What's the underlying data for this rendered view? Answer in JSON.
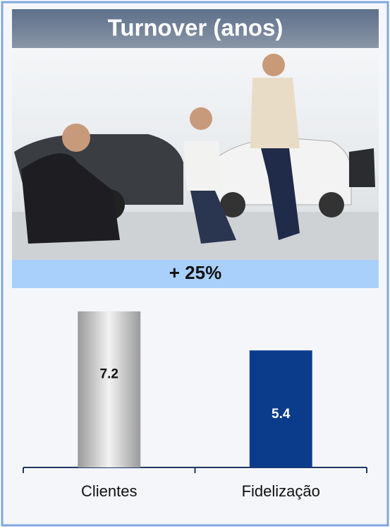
{
  "chart_data": {
    "type": "bar",
    "title": "Turnover (anos)",
    "annotation": "+ 25%",
    "categories": [
      "Clientes",
      "Fidelização"
    ],
    "values": [
      7.2,
      5.4
    ],
    "colors": [
      "#9a9a9a",
      "#0b3c8c"
    ]
  }
}
